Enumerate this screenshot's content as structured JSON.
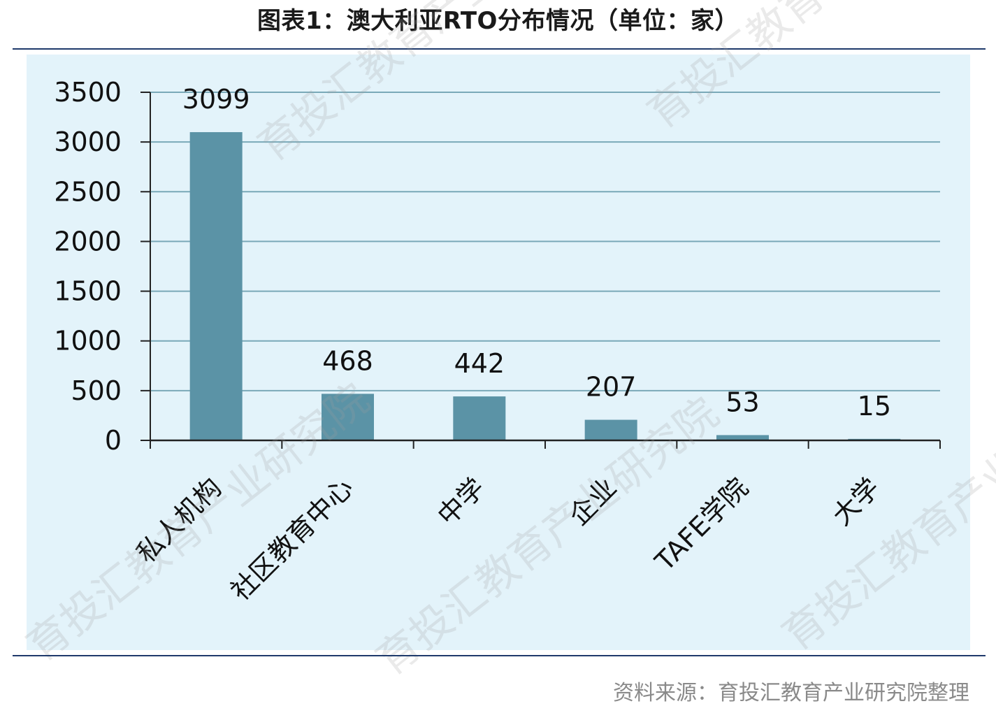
{
  "title": "图表1：澳大利亚RTO分布情况（单位：家）",
  "source": "资料来源：育投汇教育产业研究院整理",
  "watermark_text": "育投汇教育产业研究院",
  "colors": {
    "bar": "#5b93a6",
    "grid": "#7aa9b8",
    "axis": "#222222",
    "panel": "#e3f3fa",
    "rule": "#1f3a6b"
  },
  "chart_data": {
    "type": "bar",
    "categories": [
      "私人机构",
      "社区教育中心",
      "中学",
      "企业",
      "TAFE学院",
      "大学"
    ],
    "values": [
      3099,
      468,
      442,
      207,
      53,
      15
    ],
    "data_labels": [
      "3099",
      "468",
      "442",
      "207",
      "53",
      "15"
    ],
    "ylim": [
      0,
      3500
    ],
    "yticks": [
      0,
      500,
      1000,
      1500,
      2000,
      2500,
      3000,
      3500
    ],
    "grid": true,
    "legend": "none"
  }
}
